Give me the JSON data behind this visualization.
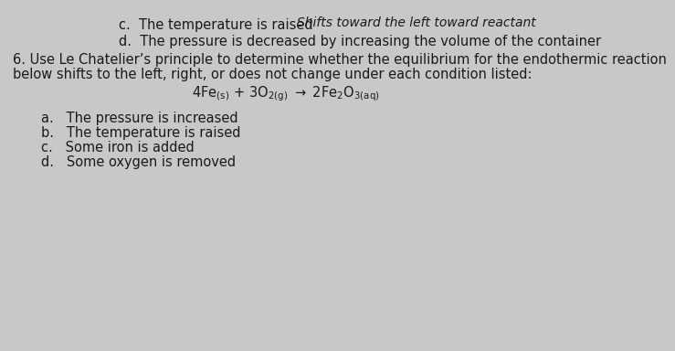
{
  "background_color": "#c8c8c8",
  "text_color": "#1a1a1a",
  "handwritten_color": "#111111",
  "line_c_prefix": "c.  The temperature is raised ",
  "line_c_handwritten": "Shifts toward the left toward reactant",
  "line_d": "d.  The pressure is decreased by increasing the volume of the container",
  "q6_line1": "6. Use Le Chatelier’s principle to determine whether the equilibrium for the endothermic reaction",
  "q6_line2": "below shifts to the left, right, or does not change under each condition listed:",
  "item_a": "a.   The pressure is increased",
  "item_b": "b.   The temperature is raised",
  "item_c": "c.   Some iron is added",
  "item_d": "d.   Some oxygen is removed",
  "font_size": 10.5,
  "font_size_hand": 10.0,
  "font_size_eq": 10.5
}
